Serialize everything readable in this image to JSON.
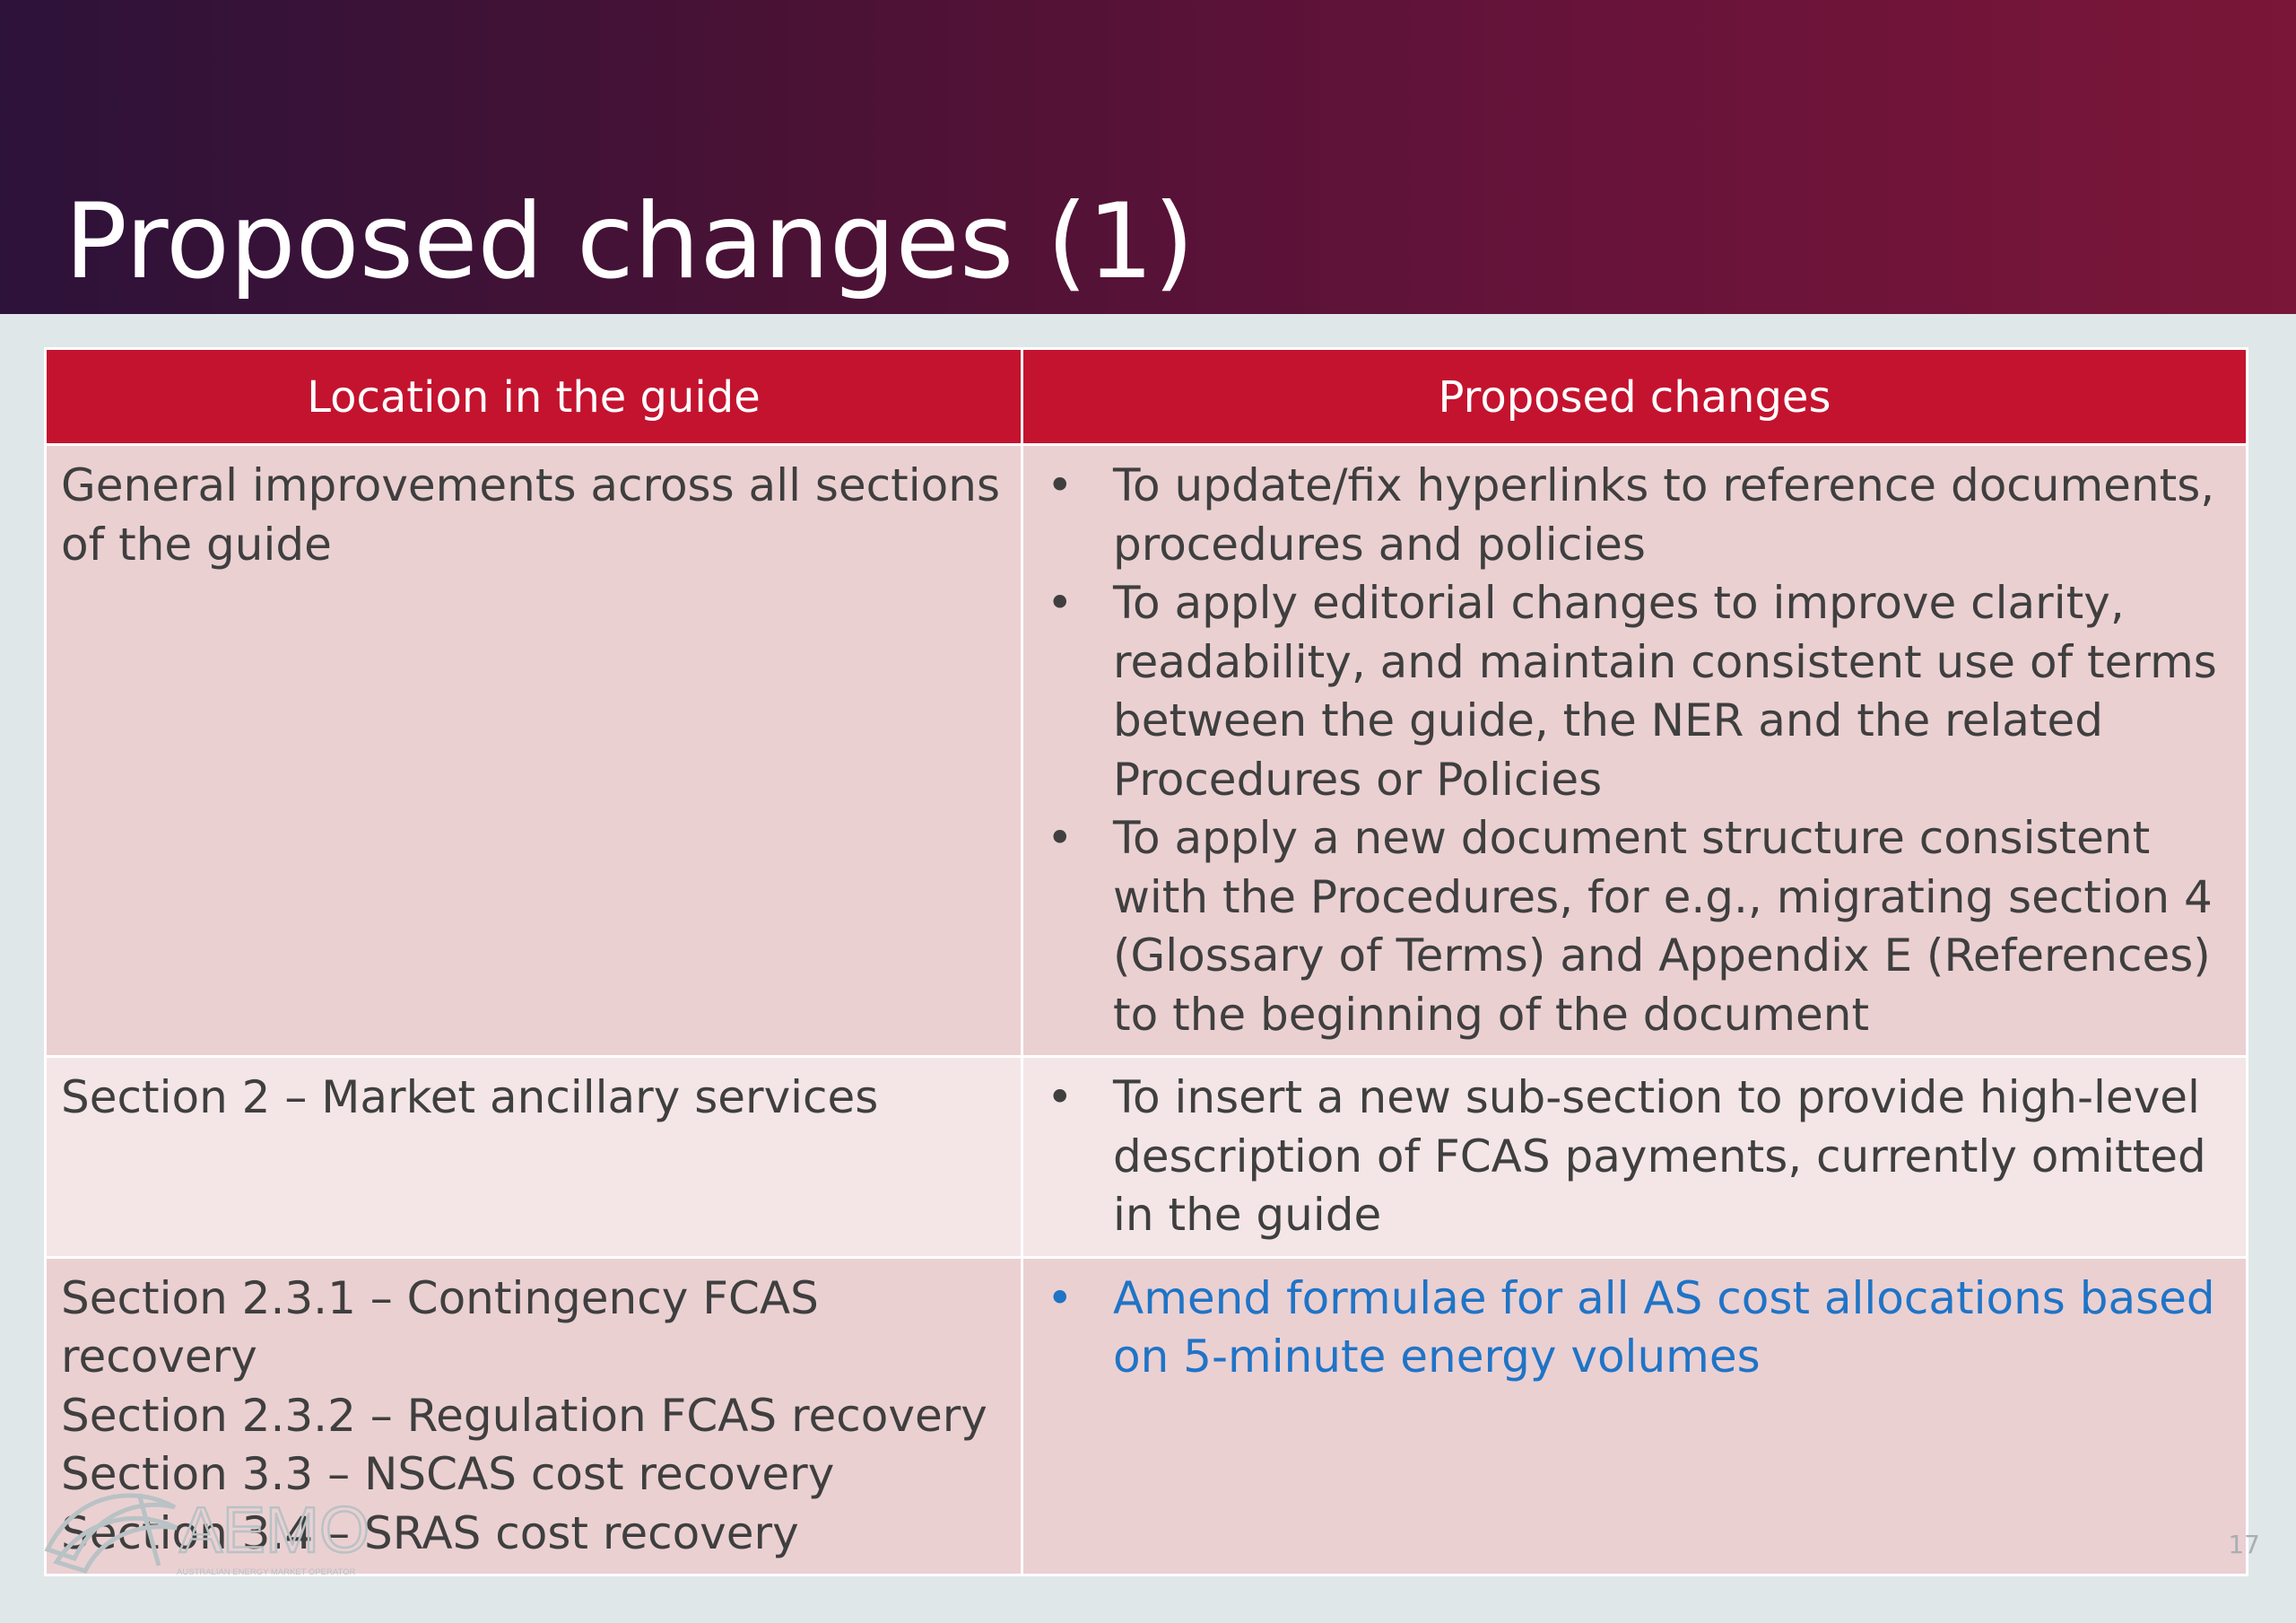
{
  "slide": {
    "title": "Proposed changes (1)",
    "page_number": "17"
  },
  "table": {
    "headers": [
      "Location in the guide",
      "Proposed changes"
    ],
    "rows": [
      {
        "location": [
          "General improvements across all sections of the guide"
        ],
        "changes": [
          "To update/fix hyperlinks to reference documents, procedures and policies",
          "To apply editorial changes to improve clarity, readability, and maintain consistent use of terms between the guide, the NER and the related Procedures or Policies",
          "To apply a new document structure consistent with the Procedures, for e.g., migrating section 4 (Glossary of Terms) and Appendix E (References) to the beginning of the document"
        ]
      },
      {
        "location": [
          "Section 2 – Market ancillary services"
        ],
        "changes": [
          "To insert a new sub-section to provide high-level description of FCAS payments, currently omitted in the guide"
        ]
      },
      {
        "location": [
          "Section 2.3.1 – Contingency FCAS recovery",
          "Section 2.3.2 – Regulation FCAS recovery",
          "Section 3.3 – NSCAS cost recovery",
          "Section 3.4 – SRAS cost recovery"
        ],
        "changes": [
          "Amend formulae for all AS cost allocations based on 5-minute energy volumes"
        ]
      }
    ]
  },
  "bullet_glyph": "•",
  "logo": {
    "name": "AEMO",
    "tagline": "AUSTRALIAN ENERGY MARKET OPERATOR",
    "icon": "aemo-logo-icon"
  },
  "colors": {
    "header_gradient_start": "#2d1239",
    "header_gradient_end": "#7a1638",
    "table_header": "#c4132e",
    "row_dark": "#ebd0d2",
    "row_light": "#f4e6e7",
    "highlight_text": "#1f74c6",
    "background": "#dfe7e9"
  }
}
